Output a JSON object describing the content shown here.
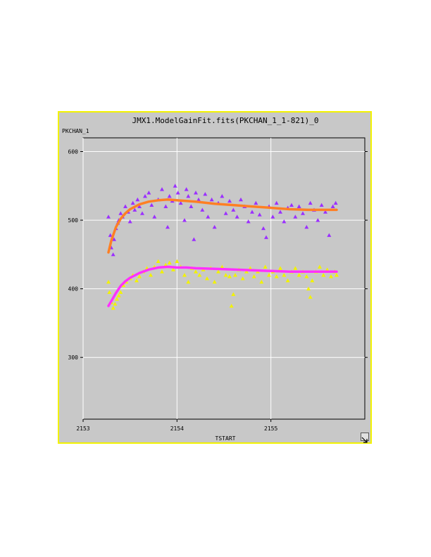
{
  "window": {
    "title": "JMX1.ModelGainFit.fits(PKCHAN_1_1-821)_0",
    "border_color": "#f2f200",
    "background_color": "#c8c8c8"
  },
  "icons": {
    "resize": "resize-arrow-icon"
  },
  "chart_data": {
    "type": "scatter",
    "title": "JMX1.ModelGainFit.fits(PKCHAN_1_1-821)_0",
    "xlabel": "TSTART",
    "ylabel": "PKCHAN_1",
    "xlim": [
      2153,
      2156
    ],
    "ylim": [
      210,
      620
    ],
    "x_ticks": [
      2153,
      2154,
      2155
    ],
    "y_ticks": [
      300,
      400,
      500,
      600
    ],
    "grid": true,
    "series": [
      {
        "kind": "points",
        "marker": "triangle",
        "color": "#9b30ff",
        "x": [
          2153.27,
          2153.29,
          2153.3,
          2153.32,
          2153.33,
          2153.35,
          2153.37,
          2153.38,
          2153.4,
          2153.42,
          2153.45,
          2153.48,
          2153.5,
          2153.53,
          2153.55,
          2153.58,
          2153.6,
          2153.63,
          2153.66,
          2153.7,
          2153.73,
          2153.76,
          2153.8,
          2153.84,
          2153.88,
          2153.9,
          2153.92,
          2153.95,
          2153.98,
          2154.01,
          2154.04,
          2154.08,
          2154.1,
          2154.12,
          2154.15,
          2154.18,
          2154.2,
          2154.23,
          2154.27,
          2154.3,
          2154.33,
          2154.37,
          2154.4,
          2154.44,
          2154.48,
          2154.52,
          2154.56,
          2154.6,
          2154.64,
          2154.68,
          2154.72,
          2154.76,
          2154.8,
          2154.84,
          2154.88,
          2154.92,
          2154.95,
          2154.98,
          2155.02,
          2155.06,
          2155.1,
          2155.14,
          2155.18,
          2155.22,
          2155.26,
          2155.3,
          2155.34,
          2155.38,
          2155.42,
          2155.46,
          2155.5,
          2155.54,
          2155.58,
          2155.62,
          2155.66,
          2155.69
        ],
        "y": [
          505,
          478,
          460,
          450,
          472,
          488,
          496,
          500,
          510,
          505,
          520,
          512,
          498,
          525,
          515,
          530,
          520,
          510,
          535,
          540,
          522,
          505,
          530,
          545,
          520,
          490,
          535,
          528,
          550,
          540,
          525,
          500,
          545,
          535,
          520,
          472,
          540,
          530,
          515,
          538,
          505,
          530,
          490,
          525,
          535,
          510,
          528,
          515,
          505,
          530,
          520,
          498,
          512,
          525,
          508,
          488,
          475,
          520,
          505,
          525,
          512,
          498,
          518,
          522,
          505,
          520,
          510,
          490,
          525,
          515,
          500,
          522,
          512,
          478,
          520,
          525
        ]
      },
      {
        "kind": "points",
        "marker": "triangle",
        "color": "#f2f200",
        "x": [
          2153.27,
          2153.28,
          2153.3,
          2153.32,
          2153.34,
          2153.36,
          2153.38,
          2153.4,
          2153.43,
          2153.46,
          2153.5,
          2153.53,
          2153.57,
          2153.6,
          2153.64,
          2153.68,
          2153.72,
          2153.76,
          2153.8,
          2153.84,
          2153.88,
          2153.92,
          2153.96,
          2154.0,
          2154.04,
          2154.08,
          2154.12,
          2154.16,
          2154.2,
          2154.24,
          2154.28,
          2154.32,
          2154.36,
          2154.4,
          2154.44,
          2154.48,
          2154.52,
          2154.56,
          2154.58,
          2154.6,
          2154.62,
          2154.66,
          2154.7,
          2154.74,
          2154.78,
          2154.82,
          2154.86,
          2154.9,
          2154.94,
          2154.98,
          2155.02,
          2155.06,
          2155.1,
          2155.14,
          2155.18,
          2155.22,
          2155.26,
          2155.3,
          2155.34,
          2155.38,
          2155.4,
          2155.42,
          2155.44,
          2155.48,
          2155.52,
          2155.56,
          2155.6,
          2155.64,
          2155.68,
          2155.7
        ],
        "y": [
          410,
          395,
          380,
          372,
          378,
          385,
          390,
          395,
          405,
          410,
          415,
          420,
          412,
          418,
          425,
          430,
          420,
          432,
          440,
          425,
          435,
          438,
          428,
          440,
          432,
          420,
          410,
          430,
          425,
          420,
          428,
          415,
          430,
          410,
          425,
          432,
          420,
          418,
          375,
          392,
          420,
          428,
          415,
          425,
          430,
          418,
          425,
          410,
          432,
          420,
          425,
          418,
          430,
          420,
          412,
          425,
          430,
          420,
          425,
          418,
          400,
          388,
          412,
          425,
          432,
          420,
          428,
          418,
          425,
          420
        ]
      },
      {
        "kind": "fit",
        "color": "#ff7f24",
        "x": [
          2153.27,
          2153.3,
          2153.35,
          2153.4,
          2153.45,
          2153.5,
          2153.6,
          2153.7,
          2153.8,
          2153.9,
          2154.0,
          2154.1,
          2154.2,
          2154.4,
          2154.6,
          2154.8,
          2155.0,
          2155.2,
          2155.4,
          2155.6,
          2155.7
        ],
        "y": [
          453,
          470,
          490,
          502,
          510,
          516,
          523,
          527,
          529,
          530,
          529,
          528,
          527,
          524,
          522,
          520,
          518,
          516,
          515,
          515,
          515
        ]
      },
      {
        "kind": "fit",
        "color": "#ff30ff",
        "x": [
          2153.27,
          2153.3,
          2153.35,
          2153.4,
          2153.45,
          2153.5,
          2153.6,
          2153.7,
          2153.8,
          2153.9,
          2154.0,
          2154.1,
          2154.2,
          2154.4,
          2154.6,
          2154.8,
          2155.0,
          2155.2,
          2155.4,
          2155.6,
          2155.7
        ],
        "y": [
          375,
          382,
          394,
          404,
          411,
          416,
          423,
          428,
          431,
          432,
          431,
          431,
          430,
          429,
          428,
          427,
          426,
          425,
          425,
          425,
          425
        ]
      }
    ]
  }
}
